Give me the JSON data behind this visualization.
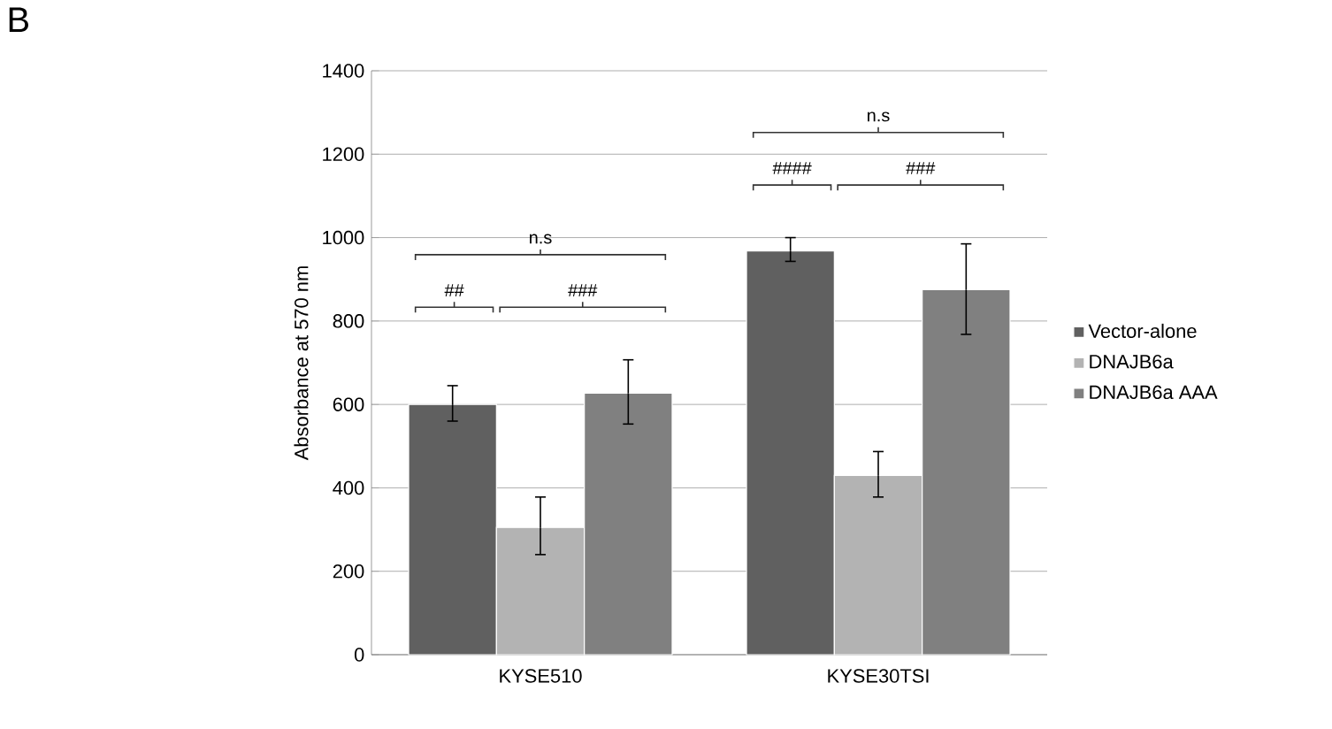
{
  "chart_data": {
    "type": "bar",
    "ylabel": "Absorbance at 570 nm",
    "categories": [
      "KYSE510",
      "KYSE30TSI"
    ],
    "series": [
      {
        "name": "Vector-alone",
        "color": "#606060",
        "values": [
          600,
          968
        ],
        "errors": [
          [
            560,
            645
          ],
          [
            943,
            1000
          ]
        ]
      },
      {
        "name": "DNAJB6a",
        "color": "#b3b3b3",
        "values": [
          305,
          430
        ],
        "errors": [
          [
            240,
            378
          ],
          [
            378,
            487
          ]
        ]
      },
      {
        "name": "DNAJB6a AAA",
        "color": "#808080",
        "values": [
          627,
          875
        ],
        "errors": [
          [
            553,
            707
          ],
          [
            768,
            985
          ]
        ]
      }
    ],
    "ylim": [
      0,
      1400
    ],
    "yticks": [
      0,
      200,
      400,
      600,
      800,
      1000,
      1200,
      1400
    ],
    "grid": "y",
    "legend": "right",
    "annotations": [
      "B",
      "##",
      "###",
      "n.s",
      "####",
      "###",
      "n.s"
    ]
  }
}
